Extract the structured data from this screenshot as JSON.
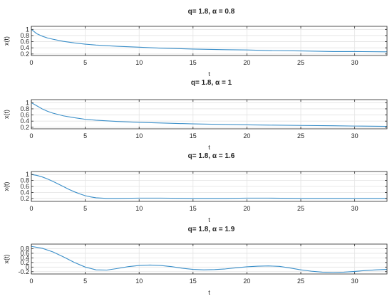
{
  "chart_data": [
    {
      "type": "line",
      "title": "q= 1.8, α = 0.8",
      "xlabel": "t",
      "ylabel": "x(t)",
      "xlim": [
        0,
        33
      ],
      "ylim": [
        0.15,
        1.1
      ],
      "xticks": [
        0,
        5,
        10,
        15,
        20,
        25,
        30
      ],
      "yticks": [
        0.2,
        0.4,
        0.6,
        0.8,
        1
      ],
      "ytick_labels": [
        "0.2",
        "0.4",
        "0.6",
        "0.8",
        "1"
      ],
      "grid": true,
      "color": "#3b8fc9",
      "x": [
        0,
        0.5,
        1,
        1.5,
        2,
        3,
        4,
        5,
        6,
        8,
        10,
        12,
        15,
        18,
        20,
        22,
        25,
        28,
        30,
        33
      ],
      "y": [
        1.0,
        0.86,
        0.78,
        0.72,
        0.68,
        0.61,
        0.56,
        0.52,
        0.49,
        0.45,
        0.42,
        0.39,
        0.36,
        0.34,
        0.33,
        0.31,
        0.3,
        0.28,
        0.28,
        0.27
      ]
    },
    {
      "type": "line",
      "title": "q= 1.8, α = 1",
      "xlabel": "t",
      "ylabel": "x(t)",
      "xlim": [
        0,
        33
      ],
      "ylim": [
        0.15,
        1.1
      ],
      "xticks": [
        0,
        5,
        10,
        15,
        20,
        25,
        30
      ],
      "yticks": [
        0.2,
        0.4,
        0.6,
        0.8,
        1
      ],
      "ytick_labels": [
        "0.2",
        "0.4",
        "0.6",
        "0.8",
        "1"
      ],
      "grid": true,
      "color": "#3b8fc9",
      "x": [
        0,
        0.5,
        1,
        1.5,
        2,
        3,
        4,
        5,
        6,
        8,
        10,
        12,
        15,
        18,
        20,
        22,
        25,
        28,
        30,
        33
      ],
      "y": [
        1.0,
        0.9,
        0.8,
        0.72,
        0.66,
        0.57,
        0.51,
        0.46,
        0.43,
        0.39,
        0.36,
        0.34,
        0.31,
        0.29,
        0.28,
        0.27,
        0.26,
        0.25,
        0.24,
        0.23
      ]
    },
    {
      "type": "line",
      "title": "q= 1.8, α = 1.6",
      "xlabel": "t",
      "ylabel": "x(t)",
      "xlim": [
        0,
        33
      ],
      "ylim": [
        0.1,
        1.1
      ],
      "xticks": [
        0,
        5,
        10,
        15,
        20,
        25,
        30
      ],
      "yticks": [
        0.2,
        0.4,
        0.6,
        0.8,
        1
      ],
      "ytick_labels": [
        "0.2",
        "0.4",
        "0.6",
        "0.8",
        "1"
      ],
      "grid": true,
      "color": "#3b8fc9",
      "x": [
        0,
        0.5,
        1,
        1.5,
        2,
        2.5,
        3,
        3.5,
        4,
        4.5,
        5,
        5.5,
        6,
        7,
        8,
        10,
        12,
        15,
        18,
        20,
        22,
        25,
        28,
        30,
        33
      ],
      "y": [
        1.0,
        0.97,
        0.92,
        0.85,
        0.77,
        0.68,
        0.59,
        0.5,
        0.42,
        0.35,
        0.29,
        0.25,
        0.22,
        0.2,
        0.2,
        0.21,
        0.21,
        0.2,
        0.2,
        0.21,
        0.21,
        0.2,
        0.2,
        0.2,
        0.2
      ]
    },
    {
      "type": "line",
      "title": "q= 1.8, α = 1.9",
      "xlabel": "t",
      "ylabel": "x(t)",
      "xlim": [
        0,
        33
      ],
      "ylim": [
        -0.3,
        1.0
      ],
      "xticks": [
        0,
        5,
        10,
        15,
        20,
        25,
        30
      ],
      "yticks": [
        -0.2,
        0,
        0.2,
        0.4,
        0.6,
        0.8
      ],
      "ytick_labels": [
        "-0.2",
        "0",
        "0.2",
        "0.4",
        "0.6",
        "0.8"
      ],
      "grid": true,
      "color": "#3b8fc9",
      "x": [
        0,
        1,
        2,
        3,
        4,
        5,
        6,
        7,
        8,
        9,
        10,
        11,
        12,
        13,
        14,
        15,
        16,
        17,
        18,
        19,
        20,
        21,
        22,
        23,
        24,
        25,
        26,
        27,
        28,
        29,
        30,
        31,
        32,
        33
      ],
      "y": [
        0.9,
        0.82,
        0.66,
        0.44,
        0.2,
        0.0,
        -0.12,
        -0.13,
        -0.06,
        0.02,
        0.07,
        0.09,
        0.07,
        0.02,
        -0.05,
        -0.1,
        -0.12,
        -0.11,
        -0.08,
        -0.03,
        0.01,
        0.04,
        0.05,
        0.03,
        -0.04,
        -0.12,
        -0.18,
        -0.22,
        -0.23,
        -0.22,
        -0.19,
        -0.15,
        -0.12,
        -0.1
      ]
    }
  ]
}
